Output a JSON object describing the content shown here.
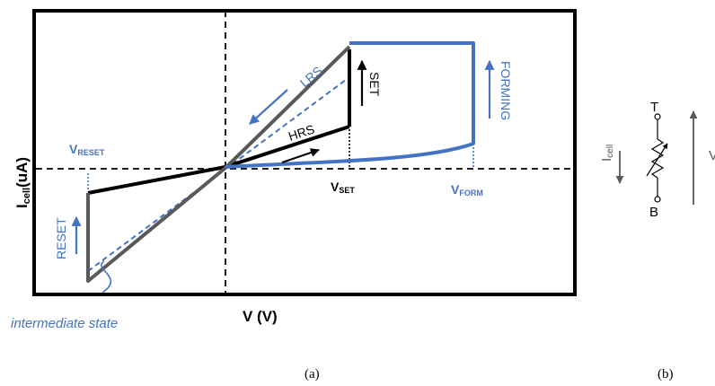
{
  "colors": {
    "black": "#000000",
    "blue": "#4472c4",
    "gray": "#595959"
  },
  "figure_a": {
    "y_axis_main": "I",
    "y_axis_sub": "cell",
    "y_axis_unit": "(uA)",
    "x_axis_label": "V (V)",
    "curve_labels": {
      "lrs": "LRS",
      "hrs": "HRS",
      "set": "SET",
      "reset": "RESET",
      "forming": "FORMING"
    },
    "v_reset_main": "V",
    "v_reset_sub": "RESET",
    "v_set_main": "V",
    "v_set_sub": "SET",
    "v_form_main": "V",
    "v_form_sub": "FORM",
    "intermediate_state": "intermediate state",
    "caption": "(a)"
  },
  "figure_b": {
    "terminal_top": "T",
    "terminal_bottom": "B",
    "current_main": "I",
    "current_sub": "cell",
    "voltage_label": "V",
    "caption": "(b)"
  }
}
